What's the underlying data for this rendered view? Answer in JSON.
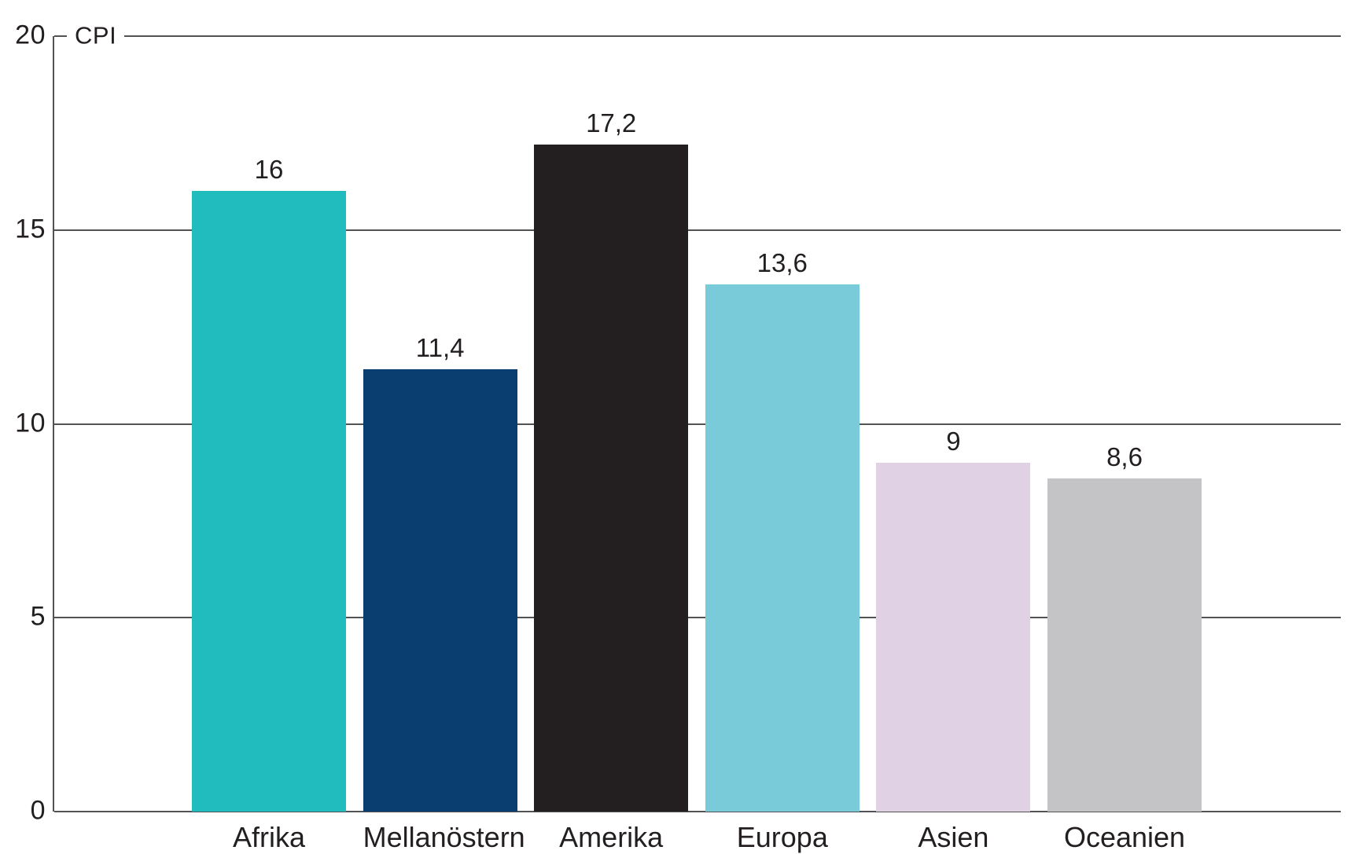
{
  "chart_data": {
    "type": "bar",
    "title": "",
    "ylabel": "CPI",
    "xlabel": "",
    "categories": [
      "Afrika",
      "Mellanöstern",
      "Amerika",
      "Europa",
      "Asien",
      "Oceanien"
    ],
    "values": [
      16,
      11.4,
      17.2,
      13.6,
      9,
      8.6
    ],
    "value_labels": [
      "16",
      "11,4",
      "17,2",
      "13,6",
      "9",
      "8,6"
    ],
    "bar_colors": [
      "#21BCBD",
      "#0A3E70",
      "#231F20",
      "#7ACBD9",
      "#E0D1E4",
      "#C4C3C5"
    ],
    "ylim": [
      0,
      20
    ],
    "yticks": [
      0,
      5,
      10,
      15,
      20
    ],
    "grid": true,
    "legend": "none",
    "grid_color": "#515254",
    "text_color": "#231F20",
    "background_color": "#FFFFFF"
  }
}
